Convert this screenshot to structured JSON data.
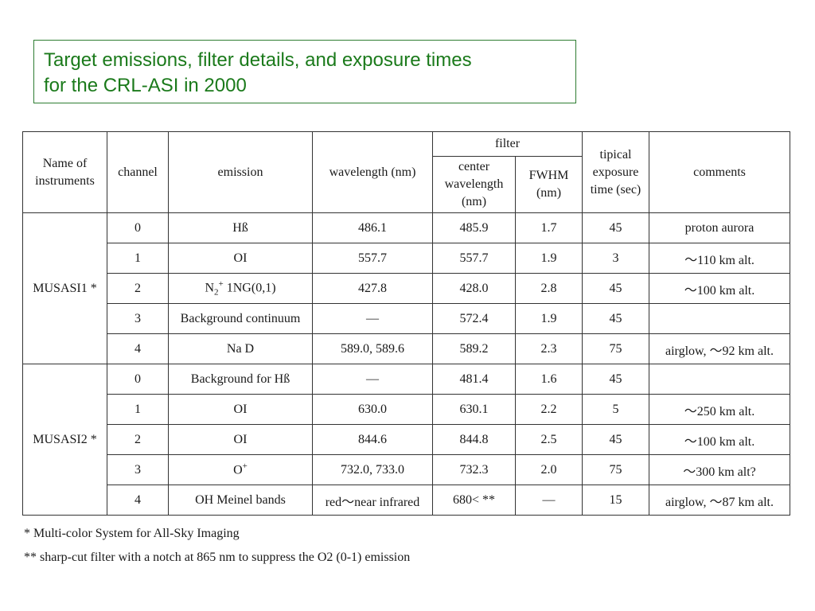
{
  "title": {
    "line1": "Target emissions, filter details, and exposure times",
    "line2": "for the CRL-ASI in 2000"
  },
  "table": {
    "headers": {
      "instrument": "Name of instruments",
      "channel": "channel",
      "emission": "emission",
      "wavelength": "wavelength (nm)",
      "filter": "filter",
      "center_wavelength": "center wavelength (nm)",
      "fwhm": "FWHM (nm)",
      "exposure": "tipical exposure time (sec)",
      "comments": "comments"
    },
    "groups": [
      {
        "instrument": "MUSASI1 *",
        "rows": [
          {
            "channel": "0",
            "emission": "Hß",
            "wavelength": "486.1",
            "center": "485.9",
            "fwhm": "1.7",
            "exposure": "45",
            "comments": "proton aurora"
          },
          {
            "channel": "1",
            "emission": "OI",
            "wavelength": "557.7",
            "center": "557.7",
            "fwhm": "1.9",
            "exposure": "3",
            "comments": "～110 km alt."
          },
          {
            "channel": "2",
            "emission_base": "N",
            "emission_sub": "2",
            "emission_sup": "+",
            "emission_rest": " 1NG(0,1)",
            "wavelength": "427.8",
            "center": "428.0",
            "fwhm": "2.8",
            "exposure": "45",
            "comments": "～100 km alt."
          },
          {
            "channel": "3",
            "emission": "Background continuum",
            "wavelength": "—",
            "center": "572.4",
            "fwhm": "1.9",
            "exposure": "45",
            "comments": ""
          },
          {
            "channel": "4",
            "emission": "Na D",
            "wavelength": "589.0, 589.6",
            "center": "589.2",
            "fwhm": "2.3",
            "exposure": "75",
            "comments": "airglow, ～92 km alt."
          }
        ]
      },
      {
        "instrument": "MUSASI2 *",
        "rows": [
          {
            "channel": "0",
            "emission": "Background for Hß",
            "wavelength": "—",
            "center": "481.4",
            "fwhm": "1.6",
            "exposure": "45",
            "comments": ""
          },
          {
            "channel": "1",
            "emission": "OI",
            "wavelength": "630.0",
            "center": "630.1",
            "fwhm": "2.2",
            "exposure": "5",
            "comments": "～250 km alt."
          },
          {
            "channel": "2",
            "emission": "OI",
            "wavelength": "844.6",
            "center": "844.8",
            "fwhm": "2.5",
            "exposure": "45",
            "comments": "～100 km alt."
          },
          {
            "channel": "3",
            "emission_base": "O",
            "emission_sup": "+",
            "wavelength": "732.0, 733.0",
            "center": "732.3",
            "fwhm": "2.0",
            "exposure": "75",
            "comments": "～300 km alt?"
          },
          {
            "channel": "4",
            "emission": "OH Meinel bands",
            "wavelength": "red～near infrared",
            "center": "680< **",
            "fwhm": "—",
            "exposure": "15",
            "comments": "airglow, ～87 km alt."
          }
        ]
      }
    ]
  },
  "footnotes": [
    "* Multi-color System for All-Sky Imaging",
    "** sharp-cut filter with a notch at 865 nm to suppress the O2 (0-1) emission"
  ]
}
